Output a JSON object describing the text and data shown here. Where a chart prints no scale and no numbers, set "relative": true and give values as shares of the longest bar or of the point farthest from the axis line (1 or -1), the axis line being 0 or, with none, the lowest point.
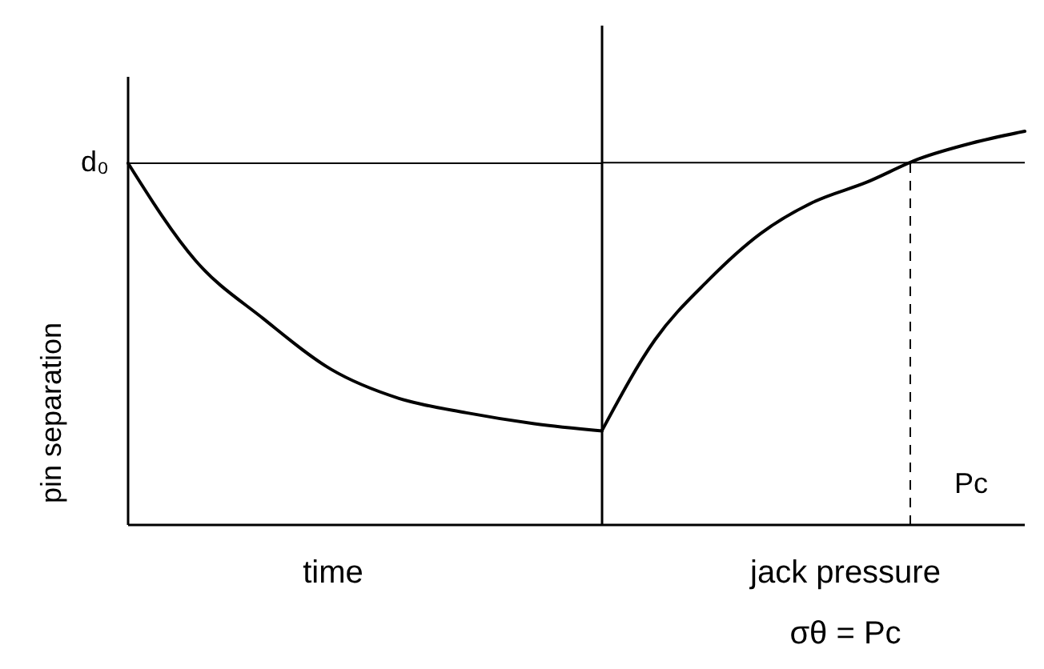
{
  "chart_data": [
    {
      "type": "line",
      "relative": true,
      "ylabel": "pin separation",
      "xlabel": "time",
      "categories": [
        null,
        null,
        null,
        null,
        null,
        null,
        null,
        null
      ],
      "series": [
        {
          "color": "#000000",
          "values": [
            1,
            0.73,
            0.57,
            0.43,
            0.35,
            0.31,
            0.28,
            0.26
          ]
        }
      ],
      "ref_lines": [
        {
          "axis": "y",
          "value": 1,
          "label": "d₀",
          "color": "#000000"
        }
      ],
      "marker": "none",
      "line_style": "solid"
    },
    {
      "type": "line",
      "relative": true,
      "xlabel": "jack pressure",
      "categories": [
        null,
        null,
        null,
        null,
        null,
        null,
        null,
        null,
        null
      ],
      "series": [
        {
          "color": "#000000",
          "values": [
            0.24,
            0.47,
            0.62,
            0.74,
            0.82,
            0.87,
            0.93,
            0.97,
            1
          ]
        }
      ],
      "ref_lines": [
        {
          "axis": "y",
          "value": 0.92,
          "color": "#000000"
        }
      ],
      "annotations": [
        "Pc",
        "σθ = Pc"
      ],
      "marker": "none",
      "line_style": "solid"
    }
  ]
}
